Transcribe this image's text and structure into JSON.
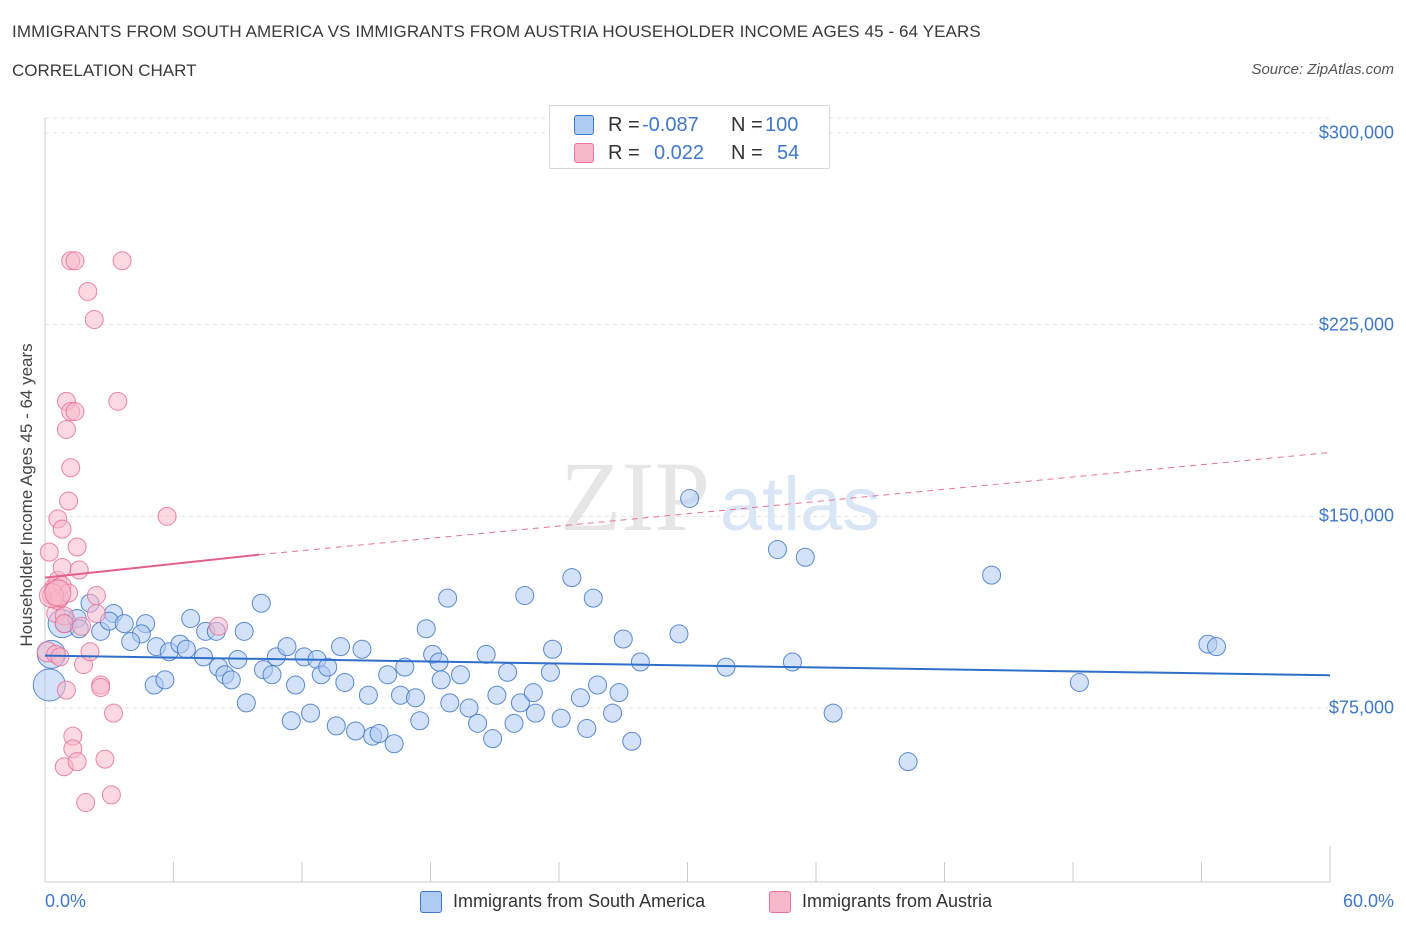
{
  "title": "IMMIGRANTS FROM SOUTH AMERICA VS IMMIGRANTS FROM AUSTRIA HOUSEHOLDER INCOME AGES 45 - 64 YEARS",
  "subtitle": "CORRELATION CHART",
  "source": "Source: ZipAtlas.com",
  "watermark": {
    "zip": "ZIP",
    "atlas": "atlas"
  },
  "legend": {
    "r_label": "R =",
    "n_label": "N =",
    "rows": [
      {
        "r": "-0.087",
        "n": "100",
        "color": "#aecbf2"
      },
      {
        "r": "0.022",
        "n": "54",
        "color": "#f7b8cb"
      }
    ]
  },
  "colors": {
    "blue": "#3f78c8",
    "blue_fill": "#aecbf2",
    "pink": "#e8729a",
    "pink_fill": "#f7b8cb"
  },
  "chart_data": {
    "type": "scatter",
    "title": "IMMIGRANTS FROM SOUTH AMERICA VS IMMIGRANTS FROM AUSTRIA HOUSEHOLDER INCOME AGES 45 - 64 YEARS",
    "xlabel": "",
    "ylabel": "Householder Income Ages 45 - 64 years",
    "xlim": [
      0,
      60
    ],
    "ylim": [
      0,
      315000
    ],
    "x_tick_labels": [
      "0.0%",
      "60.0%"
    ],
    "y_ticks": [
      75000,
      150000,
      225000,
      300000
    ],
    "y_tick_labels": [
      "$75,000",
      "$150,000",
      "$225,000",
      "$300,000"
    ],
    "grid": true,
    "series": [
      {
        "name": "Immigrants from South America",
        "color": "#aecbf2",
        "stroke": "#3f78c8",
        "trend": {
          "x": [
            0,
            60
          ],
          "y": [
            95500,
            87800
          ],
          "style": "solid"
        },
        "points": [
          [
            0.2,
            84000,
            16
          ],
          [
            0.3,
            96000,
            14
          ],
          [
            0.8,
            108000,
            14
          ],
          [
            0.9,
            108000,
            9
          ],
          [
            1.5,
            110000,
            9
          ],
          [
            1.6,
            106000,
            9
          ],
          [
            2.1,
            116000,
            9
          ],
          [
            2.6,
            105000,
            9
          ],
          [
            3.2,
            112000,
            9
          ],
          [
            3.0,
            109000,
            9
          ],
          [
            3.7,
            108000,
            9
          ],
          [
            4.7,
            108000,
            9
          ],
          [
            4.5,
            104000,
            9
          ],
          [
            4.0,
            101000,
            9
          ],
          [
            5.2,
            99000,
            9
          ],
          [
            5.8,
            97000,
            9
          ],
          [
            5.1,
            84000,
            9
          ],
          [
            5.6,
            86000,
            9
          ],
          [
            6.3,
            100000,
            9
          ],
          [
            6.6,
            98000,
            9
          ],
          [
            6.8,
            110000,
            9
          ],
          [
            7.4,
            95000,
            9
          ],
          [
            7.5,
            105000,
            9
          ],
          [
            8.1,
            91000,
            9
          ],
          [
            8.0,
            105000,
            9
          ],
          [
            8.4,
            88000,
            9
          ],
          [
            8.7,
            86000,
            9
          ],
          [
            9.0,
            94000,
            9
          ],
          [
            9.3,
            105000,
            9
          ],
          [
            9.4,
            77000,
            9
          ],
          [
            10.2,
            90000,
            9
          ],
          [
            10.1,
            116000,
            9
          ],
          [
            10.8,
            95000,
            9
          ],
          [
            10.6,
            88000,
            9
          ],
          [
            11.3,
            99000,
            9
          ],
          [
            11.5,
            70000,
            9
          ],
          [
            11.7,
            84000,
            9
          ],
          [
            12.1,
            95000,
            9
          ],
          [
            12.4,
            73000,
            9
          ],
          [
            12.7,
            94000,
            9
          ],
          [
            12.9,
            88000,
            9
          ],
          [
            13.2,
            91000,
            9
          ],
          [
            13.6,
            68000,
            9
          ],
          [
            13.8,
            99000,
            9
          ],
          [
            14.0,
            85000,
            9
          ],
          [
            14.5,
            66000,
            9
          ],
          [
            14.8,
            98000,
            9
          ],
          [
            15.1,
            80000,
            9
          ],
          [
            15.3,
            64000,
            9
          ],
          [
            15.6,
            65000,
            9
          ],
          [
            16.0,
            88000,
            9
          ],
          [
            16.3,
            61000,
            9
          ],
          [
            16.6,
            80000,
            9
          ],
          [
            16.8,
            91000,
            9
          ],
          [
            17.3,
            79000,
            9
          ],
          [
            17.5,
            70000,
            9
          ],
          [
            17.8,
            106000,
            9
          ],
          [
            18.1,
            96000,
            9
          ],
          [
            18.4,
            93000,
            9
          ],
          [
            18.8,
            118000,
            9
          ],
          [
            18.5,
            86000,
            9
          ],
          [
            18.9,
            77000,
            9
          ],
          [
            19.4,
            88000,
            9
          ],
          [
            19.8,
            75000,
            9
          ],
          [
            20.2,
            69000,
            9
          ],
          [
            20.6,
            96000,
            9
          ],
          [
            20.9,
            63000,
            9
          ],
          [
            21.1,
            80000,
            9
          ],
          [
            21.6,
            89000,
            9
          ],
          [
            21.9,
            69000,
            9
          ],
          [
            22.2,
            77000,
            9
          ],
          [
            22.4,
            119000,
            9
          ],
          [
            22.9,
            73000,
            9
          ],
          [
            22.8,
            81000,
            9
          ],
          [
            23.6,
            89000,
            9
          ],
          [
            23.7,
            98000,
            9
          ],
          [
            24.1,
            71000,
            9
          ],
          [
            24.6,
            126000,
            9
          ],
          [
            25.0,
            79000,
            9
          ],
          [
            25.3,
            67000,
            9
          ],
          [
            25.6,
            118000,
            9
          ],
          [
            25.8,
            84000,
            9
          ],
          [
            26.5,
            73000,
            9
          ],
          [
            26.8,
            81000,
            9
          ],
          [
            27.0,
            102000,
            9
          ],
          [
            27.4,
            62000,
            9
          ],
          [
            27.8,
            93000,
            9
          ],
          [
            29.6,
            104000,
            9
          ],
          [
            30.1,
            157000,
            9
          ],
          [
            31.8,
            91000,
            9
          ],
          [
            34.2,
            137000,
            9
          ],
          [
            34.9,
            93000,
            9
          ],
          [
            35.5,
            134000,
            9
          ],
          [
            36.8,
            73000,
            9
          ],
          [
            40.3,
            54000,
            9
          ],
          [
            44.2,
            127000,
            9
          ],
          [
            48.3,
            85000,
            9
          ],
          [
            54.3,
            100000,
            9
          ],
          [
            54.7,
            99000,
            9
          ]
        ]
      },
      {
        "name": "Immigrants from Austria",
        "color": "#f7b8cb",
        "stroke": "#e8729a",
        "trend": {
          "x": [
            0,
            10
          ],
          "y": [
            126000,
            135000
          ],
          "style": "solid"
        },
        "trend_extended": {
          "x": [
            10,
            60
          ],
          "y": [
            135000,
            175000
          ],
          "style": "dashed"
        },
        "points": [
          [
            0.1,
            97000,
            10
          ],
          [
            0.2,
            136000,
            9
          ],
          [
            0.3,
            119000,
            9
          ],
          [
            0.4,
            122000,
            9
          ],
          [
            0.4,
            121000,
            9
          ],
          [
            0.5,
            118000,
            9
          ],
          [
            0.5,
            112000,
            9
          ],
          [
            0.5,
            96000,
            9
          ],
          [
            0.6,
            117000,
            9
          ],
          [
            0.6,
            149000,
            9
          ],
          [
            0.6,
            125000,
            9
          ],
          [
            0.6,
            122000,
            9
          ],
          [
            0.7,
            118000,
            9
          ],
          [
            0.7,
            95000,
            9
          ],
          [
            0.8,
            145000,
            9
          ],
          [
            0.8,
            130000,
            9
          ],
          [
            0.8,
            123000,
            9
          ],
          [
            0.9,
            111000,
            9
          ],
          [
            0.9,
            108000,
            9
          ],
          [
            0.9,
            52000,
            9
          ],
          [
            1.0,
            195000,
            9
          ],
          [
            1.0,
            184000,
            9
          ],
          [
            1.0,
            82000,
            9
          ],
          [
            1.1,
            156000,
            9
          ],
          [
            1.1,
            120000,
            9
          ],
          [
            1.2,
            250000,
            9
          ],
          [
            1.2,
            191000,
            9
          ],
          [
            1.2,
            169000,
            9
          ],
          [
            1.3,
            64000,
            9
          ],
          [
            1.3,
            59000,
            9
          ],
          [
            1.4,
            250000,
            9
          ],
          [
            1.4,
            191000,
            9
          ],
          [
            1.5,
            138000,
            9
          ],
          [
            1.5,
            54000,
            9
          ],
          [
            1.6,
            129000,
            9
          ],
          [
            1.7,
            107000,
            9
          ],
          [
            1.8,
            92000,
            9
          ],
          [
            1.9,
            38000,
            9
          ],
          [
            2.0,
            238000,
            9
          ],
          [
            2.1,
            97000,
            9
          ],
          [
            2.3,
            227000,
            9
          ],
          [
            2.4,
            119000,
            9
          ],
          [
            2.4,
            112000,
            9
          ],
          [
            2.6,
            84000,
            9
          ],
          [
            2.6,
            83000,
            9
          ],
          [
            2.8,
            55000,
            9
          ],
          [
            3.1,
            41000,
            9
          ],
          [
            3.2,
            73000,
            9
          ],
          [
            3.4,
            195000,
            9
          ],
          [
            3.6,
            250000,
            9
          ],
          [
            5.7,
            150000,
            9
          ],
          [
            8.1,
            107000,
            9
          ],
          [
            0.3,
            119000,
            12
          ],
          [
            0.6,
            120000,
            13
          ]
        ]
      }
    ]
  },
  "bottom_legend": [
    {
      "label": "Immigrants from South America",
      "color": "#aecbf2"
    },
    {
      "label": "Immigrants from Austria",
      "color": "#f7b8cb"
    }
  ]
}
